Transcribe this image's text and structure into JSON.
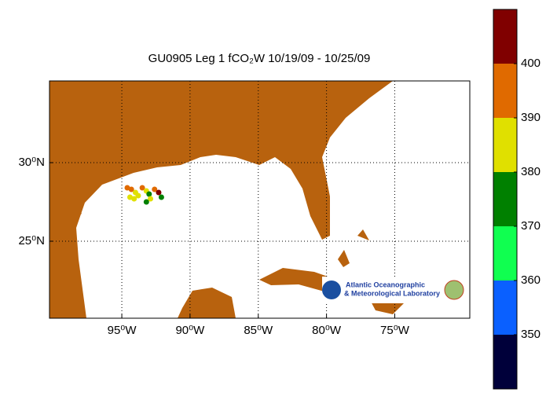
{
  "chart_data": {
    "type": "scatter",
    "title": "GU0905 Leg 1 fCO₂W 10/19/09 - 10/25/09",
    "x": [
      -94.6,
      -94.3,
      -94.0,
      -93.8,
      -94.1,
      -94.4,
      -93.5,
      -93.2,
      -93.0,
      -92.9,
      -93.2,
      -92.6,
      -92.3,
      -92.1
    ],
    "y": [
      28.4,
      28.3,
      28.1,
      27.9,
      27.7,
      27.8,
      28.4,
      28.2,
      28.0,
      27.7,
      27.5,
      28.3,
      28.1,
      27.8
    ],
    "values": [
      398,
      395,
      386,
      384,
      383,
      382,
      399,
      385,
      376,
      384,
      378,
      393,
      402,
      376
    ],
    "xlim": [
      -100.3,
      -69.5
    ],
    "ylim": [
      20.1,
      35.2
    ],
    "xticks": [
      {
        "value": -95,
        "label": "95⁰W"
      },
      {
        "value": -90,
        "label": "90⁰W"
      },
      {
        "value": -85,
        "label": "85⁰W"
      },
      {
        "value": -80,
        "label": "80⁰W"
      },
      {
        "value": -75,
        "label": "75⁰W"
      }
    ],
    "yticks": [
      {
        "value": 25,
        "label": "25⁰N"
      },
      {
        "value": 30,
        "label": "30⁰N"
      }
    ],
    "grid": true,
    "colorbar": {
      "lim": [
        340,
        410
      ],
      "ticks": [
        350,
        360,
        370,
        380,
        390,
        400
      ],
      "colors": [
        "#00003a",
        "#0a60ff",
        "#10ff50",
        "#008000",
        "#e0e000",
        "#e06a00",
        "#800000"
      ]
    }
  },
  "logo": {
    "line1": "Atlantic Oceanographic",
    "line2": "& Meteorological Laboratory"
  }
}
